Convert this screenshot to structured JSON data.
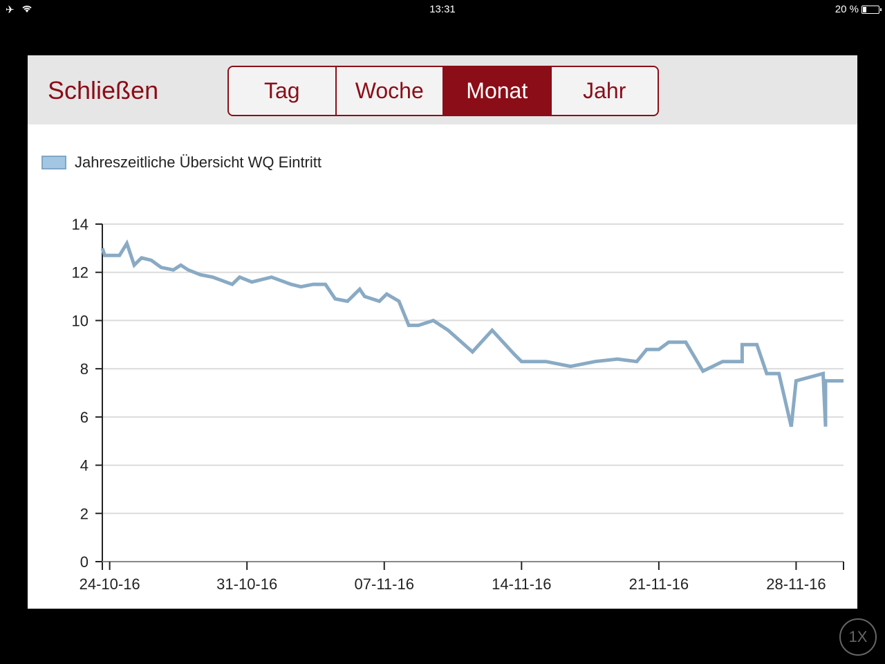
{
  "status": {
    "time": "13:31",
    "battery": "20 %"
  },
  "toolbar": {
    "close_label": "Schließen",
    "tabs": [
      {
        "label": "Tag"
      },
      {
        "label": "Woche"
      },
      {
        "label": "Monat"
      },
      {
        "label": "Jahr"
      }
    ],
    "active_tab": "Monat"
  },
  "zoom_label": "1X",
  "colors": {
    "accent": "#8b0d17",
    "line": "#89aac4",
    "legend": "#a3c6e2"
  },
  "chart_data": {
    "type": "line",
    "legend": [
      "Jahreszeitliche Übersicht WQ Eintritt"
    ],
    "ylim": [
      0,
      14
    ],
    "yticks": [
      0,
      2,
      4,
      6,
      8,
      10,
      12,
      14
    ],
    "xlim": [
      "2016-10-23T15:00",
      "2016-11-30T10:00"
    ],
    "xticks": [
      "2016-10-24",
      "2016-10-31",
      "2016-11-07",
      "2016-11-14",
      "2016-11-21",
      "2016-11-28"
    ],
    "xtick_labels": [
      "24-10-16",
      "31-10-16",
      "07-11-16",
      "14-11-16",
      "21-11-16",
      "28-11-16"
    ],
    "grid": true,
    "series": [
      {
        "name": "Jahreszeitliche Übersicht WQ Eintritt",
        "x": [
          "2016-10-23T15:00",
          "2016-10-23T18:00",
          "2016-10-24T12:00",
          "2016-10-24T21:00",
          "2016-10-25T06:00",
          "2016-10-25T15:00",
          "2016-10-26T03:00",
          "2016-10-26T15:00",
          "2016-10-27T06:00",
          "2016-10-27T15:00",
          "2016-10-28T00:00",
          "2016-10-28T15:00",
          "2016-10-29T06:00",
          "2016-10-30T06:00",
          "2016-10-30T15:00",
          "2016-10-31T06:00",
          "2016-11-01T06:00",
          "2016-11-02T06:00",
          "2016-11-02T18:00",
          "2016-11-03T09:00",
          "2016-11-04T00:00",
          "2016-11-04T12:00",
          "2016-11-05T03:00",
          "2016-11-05T18:00",
          "2016-11-06T00:00",
          "2016-11-06T18:00",
          "2016-11-07T03:00",
          "2016-11-07T18:00",
          "2016-11-08T06:00",
          "2016-11-08T18:00",
          "2016-11-09T12:00",
          "2016-11-10T06:00",
          "2016-11-11T12:00",
          "2016-11-12T12:00",
          "2016-11-13T15:00",
          "2016-11-14T00:00",
          "2016-11-14T06:00",
          "2016-11-15T06:00",
          "2016-11-16T12:00",
          "2016-11-17T18:00",
          "2016-11-18T21:00",
          "2016-11-19T21:00",
          "2016-11-20T09:00",
          "2016-11-21T00:00",
          "2016-11-21T12:00",
          "2016-11-22T09:00",
          "2016-11-23T06:00",
          "2016-11-24T06:00",
          "2016-11-25T06:00",
          "2016-11-25T06:00",
          "2016-11-26T00:00",
          "2016-11-26T12:00",
          "2016-11-27T03:00",
          "2016-11-27T18:00",
          "2016-11-28T00:00",
          "2016-11-28T00:00",
          "2016-11-29T09:00",
          "2016-11-29T09:00",
          "2016-11-29T12:00",
          "2016-11-29T12:00",
          "2016-11-30T10:00"
        ],
        "y": [
          13.0,
          12.7,
          12.7,
          13.2,
          12.3,
          12.6,
          12.5,
          12.2,
          12.1,
          12.3,
          12.1,
          11.9,
          11.8,
          11.5,
          11.8,
          11.6,
          11.8,
          11.5,
          11.4,
          11.5,
          11.5,
          10.9,
          10.8,
          11.3,
          11.0,
          10.8,
          11.1,
          10.8,
          9.8,
          9.8,
          10.0,
          9.6,
          8.7,
          9.6,
          8.6,
          8.3,
          8.3,
          8.3,
          8.1,
          8.3,
          8.4,
          8.3,
          8.8,
          8.8,
          9.1,
          9.1,
          7.9,
          8.3,
          8.3,
          9.0,
          9.0,
          7.8,
          7.8,
          5.6,
          7.5,
          7.5,
          7.8,
          7.8,
          5.6,
          7.5,
          7.5
        ]
      }
    ]
  }
}
